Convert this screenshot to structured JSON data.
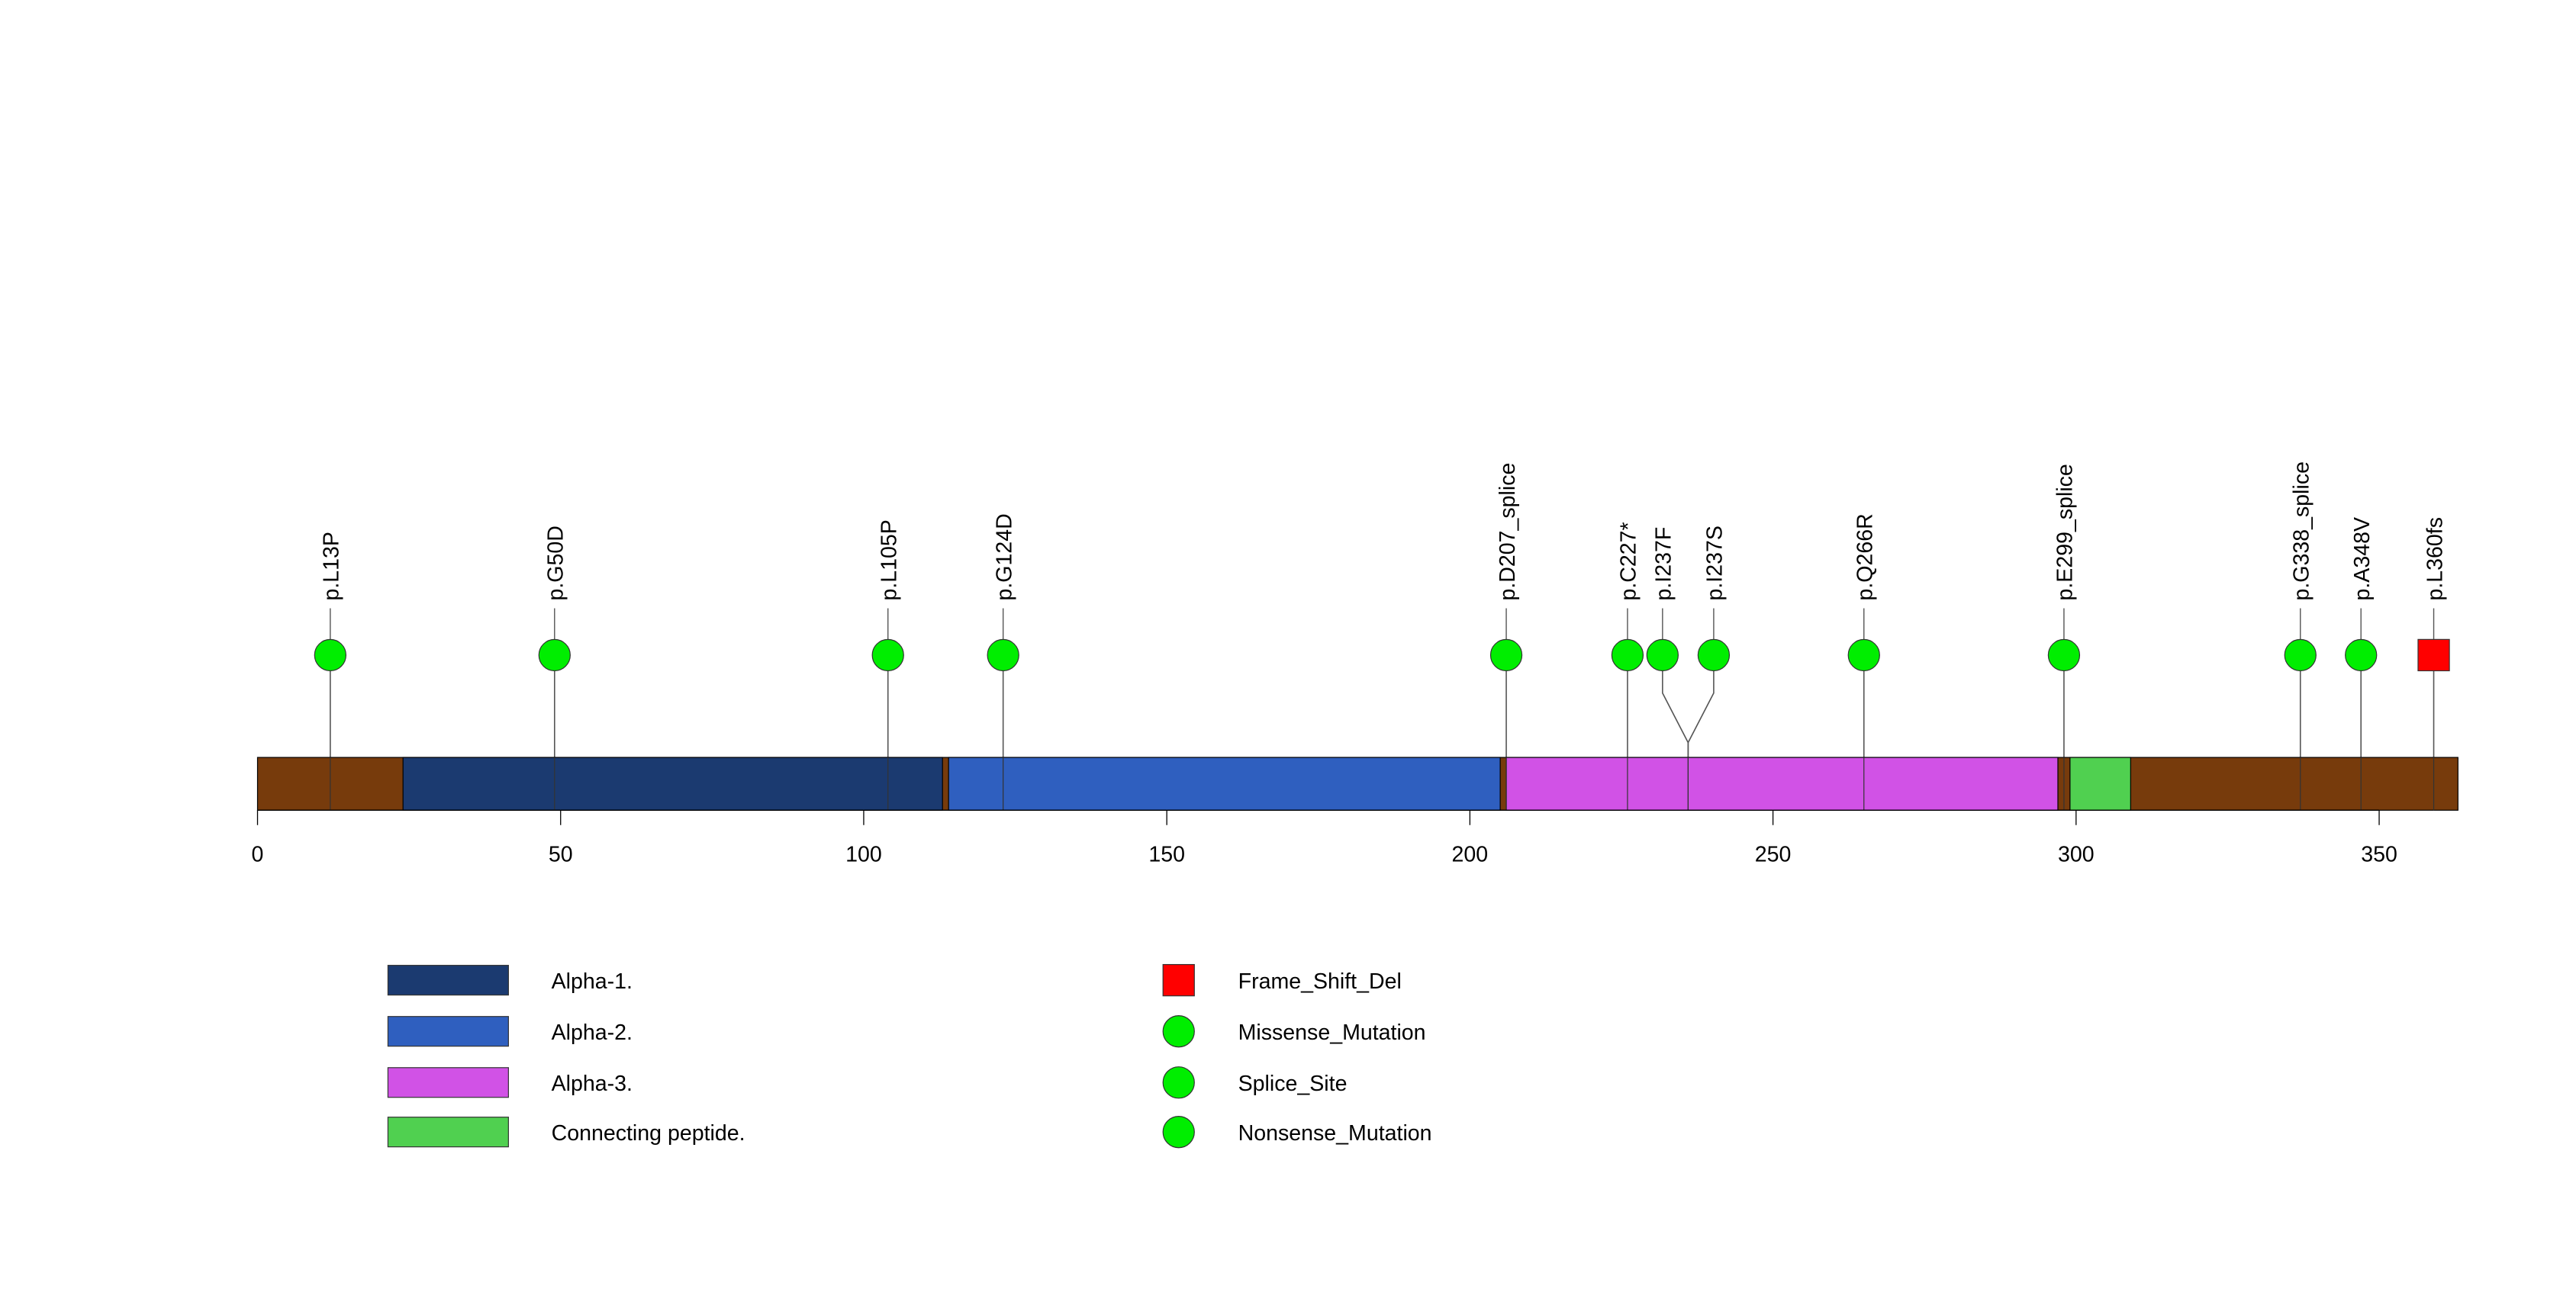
{
  "chart_data": {
    "type": "lollipop",
    "axis": {
      "min": 0,
      "max": 363,
      "ticks": [
        0,
        50,
        100,
        150,
        200,
        250,
        300,
        350
      ]
    },
    "domains": [
      {
        "name": "Alpha-1.",
        "start": 24,
        "end": 113,
        "color": "#1b3a70"
      },
      {
        "name": "Alpha-2.",
        "start": 114,
        "end": 205,
        "color": "#2f5fbf"
      },
      {
        "name": "Alpha-3.",
        "start": 206,
        "end": 297,
        "color": "#d152e6"
      },
      {
        "name": "Connecting peptide.",
        "start": 299,
        "end": 309,
        "color": "#50d050"
      }
    ],
    "backbone_color": "#773b0c",
    "mutations": [
      {
        "label": "p.L13P",
        "position": 12,
        "type": "Missense_Mutation"
      },
      {
        "label": "p.G50D",
        "position": 49,
        "type": "Missense_Mutation"
      },
      {
        "label": "p.L105P",
        "position": 104,
        "type": "Missense_Mutation"
      },
      {
        "label": "p.G124D",
        "position": 123,
        "type": "Missense_Mutation"
      },
      {
        "label": "p.D207_splice",
        "position": 206,
        "type": "Splice_Site"
      },
      {
        "label": "p.C227*",
        "position": 226,
        "type": "Nonsense_Mutation"
      },
      {
        "label": "p.I237F",
        "position": 236,
        "type": "Missense_Mutation"
      },
      {
        "label": "p.I237S",
        "position": 236,
        "type": "Missense_Mutation"
      },
      {
        "label": "p.Q266R",
        "position": 265,
        "type": "Missense_Mutation"
      },
      {
        "label": "p.E299_splice",
        "position": 298,
        "type": "Splice_Site"
      },
      {
        "label": "p.G338_splice",
        "position": 337,
        "type": "Splice_Site"
      },
      {
        "label": "p.A348V",
        "position": 347,
        "type": "Missense_Mutation"
      },
      {
        "label": "p.L360fs",
        "position": 359,
        "type": "Frame_Shift_Del"
      }
    ],
    "legend_domains": [
      {
        "name": "Alpha-1.",
        "color": "#1b3a70"
      },
      {
        "name": "Alpha-2.",
        "color": "#2f5fbf"
      },
      {
        "name": "Alpha-3.",
        "color": "#d152e6"
      },
      {
        "name": "Connecting peptide.",
        "color": "#50d050"
      }
    ],
    "legend_mutations": [
      {
        "name": "Frame_Shift_Del",
        "shape": "square",
        "color": "#ff0000"
      },
      {
        "name": "Missense_Mutation",
        "shape": "circle",
        "color": "#00ee00"
      },
      {
        "name": "Splice_Site",
        "shape": "circle",
        "color": "#00ee00"
      },
      {
        "name": "Nonsense_Mutation",
        "shape": "circle",
        "color": "#00ee00"
      }
    ]
  }
}
